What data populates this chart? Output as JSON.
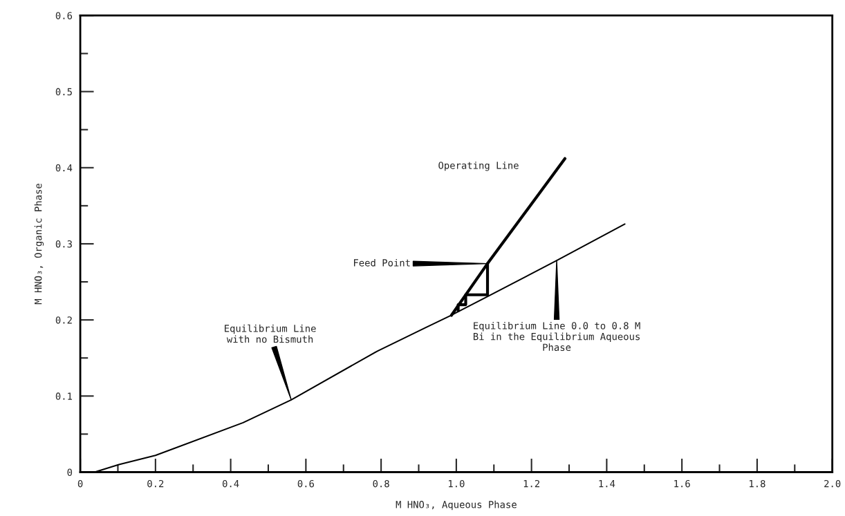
{
  "chart_data": {
    "type": "line",
    "xlabel": "M HNO₃, Aqueous Phase",
    "ylabel": "M HNO₃, Organic Phase",
    "series": [
      {
        "color": "#000000",
        "x": [
          0.038,
          0.103,
          0.2,
          0.433,
          0.561,
          0.79,
          0.919,
          0.982,
          1.088,
          1.267,
          1.448
        ],
        "values": [
          0,
          0.01,
          0.022,
          0.065,
          0.095,
          0.159,
          0.19,
          0.205,
          0.232,
          0.278,
          0.326
        ]
      },
      {
        "color": "#000000",
        "x": [
          0.987,
          1.083,
          1.289
        ],
        "values": [
          0.206,
          0.274,
          0.412
        ]
      },
      {
        "color": "#000000",
        "x": [
          1.083,
          1.083,
          1.025,
          1.025,
          1.005,
          1.005
        ],
        "values": [
          0.274,
          0.233,
          0.233,
          0.22,
          0.22,
          0.212
        ]
      }
    ],
    "annotations": [
      {
        "text": "Operating Line"
      },
      {
        "text": "Feed Point",
        "x": 1.083,
        "y": 0.274
      },
      {
        "text": "Equilibrium Line\nwith no Bismuth",
        "x": 0.561,
        "y": 0.095
      },
      {
        "text": "Equilibrium Line 0.0 to 0.8 M\nBi in the Equilibrium Aqueous\nPhase",
        "x": 1.267,
        "y": 0.278
      }
    ],
    "xlim": [
      0,
      2.0
    ],
    "ylim": [
      0,
      0.6
    ],
    "xticks": [
      0,
      {
        "value": 0.1,
        "label": null
      },
      0.2,
      {
        "value": 0.3,
        "label": null
      },
      0.4,
      {
        "value": 0.5,
        "label": null
      },
      0.6,
      {
        "value": 0.7,
        "label": null
      },
      0.8,
      {
        "value": 0.9,
        "label": null
      },
      {
        "value": 1,
        "label": "1.0"
      },
      {
        "value": 1.1,
        "label": null
      },
      1.2,
      {
        "value": 1.3,
        "label": null
      },
      1.4,
      {
        "value": 1.5,
        "label": null
      },
      1.6,
      {
        "value": 1.7,
        "label": null
      },
      1.8,
      {
        "value": 1.9,
        "label": null
      },
      {
        "value": 2,
        "label": "2.0"
      }
    ],
    "yticks": [
      0,
      {
        "value": 0.05,
        "label": null
      },
      0.1,
      {
        "value": 0.15,
        "label": null
      },
      0.2,
      {
        "value": 0.25,
        "label": null
      },
      0.3,
      {
        "value": 0.35,
        "label": null
      },
      0.4,
      {
        "value": 0.45,
        "label": null
      },
      0.5,
      {
        "value": 0.55,
        "label": null
      },
      0.6
    ],
    "grid": false,
    "legend": false
  }
}
